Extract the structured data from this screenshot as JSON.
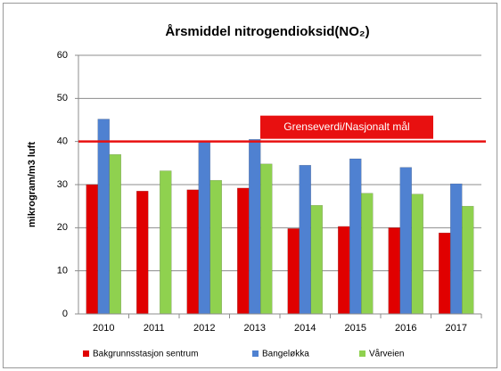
{
  "chart_data": {
    "type": "bar",
    "title": "Årsmiddel nitrogendioksid(NO₂)",
    "ylabel": "mikrogram/m3 luft",
    "categories": [
      "2010",
      "2011",
      "2012",
      "2013",
      "2014",
      "2015",
      "2016",
      "2017"
    ],
    "series": [
      {
        "name": "Bakgrunnsstasjon sentrum",
        "color": "#e00000",
        "values": [
          30,
          28.5,
          28.8,
          29.2,
          19.8,
          20.3,
          20,
          18.8
        ]
      },
      {
        "name": "Bangeløkka",
        "color": "#4f81d1",
        "values": [
          45.2,
          null,
          40,
          40.5,
          34.5,
          36,
          34,
          30.2
        ]
      },
      {
        "name": "Vårveien",
        "color": "#8fd14f",
        "values": [
          37,
          33.2,
          31,
          34.8,
          25.2,
          28,
          27.8,
          25
        ]
      }
    ],
    "annotations": [
      {
        "text": "Grenseverdi/Nasjonalt mål",
        "value": 40,
        "color": "#e81010"
      }
    ],
    "ylim": [
      0,
      60
    ],
    "yticks": [
      0,
      10,
      20,
      30,
      40,
      50,
      60
    ],
    "grid": true,
    "legend": "bottom"
  }
}
